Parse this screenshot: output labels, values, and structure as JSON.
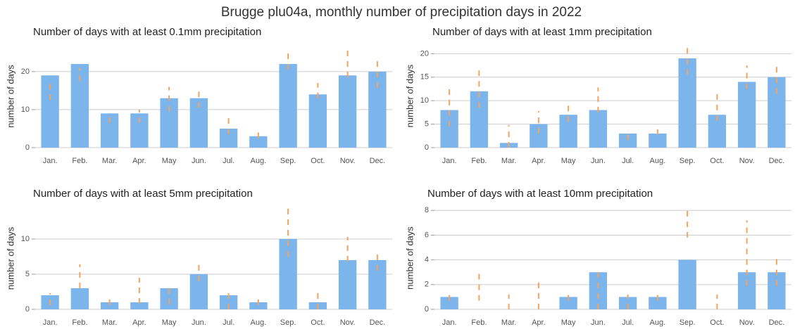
{
  "title": "Brugge plu04a, monthly number of precipitation days in 2022",
  "chart_data": [
    {
      "type": "bar",
      "title": "Number of days with at least 0.1mm precipitation",
      "ylabel": "number of days",
      "color": "#7cb4ec",
      "range_color": "#f5a25d",
      "grid": true,
      "categories": [
        "Jan.",
        "Feb.",
        "Mar.",
        "Apr.",
        "May",
        "Jun.",
        "Jul.",
        "Aug.",
        "Sep.",
        "Oct.",
        "Nov.",
        "Dec."
      ],
      "values": [
        19,
        22,
        9,
        9,
        13,
        13,
        5,
        3,
        22,
        14,
        19,
        20
      ],
      "low": [
        12.5,
        17.5,
        6.5,
        6.5,
        9.5,
        10.5,
        3.5,
        2.5,
        20.5,
        13,
        18.5,
        15.7
      ],
      "high": [
        18,
        21,
        9,
        10,
        16,
        15,
        7.8,
        4.3,
        26,
        17,
        26.7,
        22.8
      ],
      "ylim": [
        0,
        27
      ],
      "yticks": [
        0,
        10,
        20
      ]
    },
    {
      "type": "bar",
      "title": "Number of days with at least 1mm precipitation",
      "ylabel": "number of days",
      "color": "#7cb4ec",
      "range_color": "#f5a25d",
      "grid": true,
      "categories": [
        "Jan.",
        "Feb.",
        "Mar.",
        "Apr.",
        "May",
        "Jun.",
        "Jul.",
        "Aug.",
        "Sep.",
        "Oct.",
        "Nov.",
        "Dec."
      ],
      "values": [
        8,
        12,
        1,
        5,
        7,
        8,
        3,
        3,
        19,
        7,
        14,
        15
      ],
      "low": [
        4.5,
        8.5,
        0,
        3,
        5.5,
        7.5,
        1.6,
        2.7,
        15.5,
        5.7,
        12.5,
        11.5
      ],
      "high": [
        12.7,
        16.7,
        4.8,
        7.8,
        9.9,
        12.8,
        3.9,
        3.9,
        21.5,
        11.8,
        17.5,
        17.5
      ],
      "ylim": [
        0,
        22
      ],
      "yticks": [
        0,
        5,
        10,
        15,
        20
      ]
    },
    {
      "type": "bar",
      "title": "Number of days with at least 5mm precipitation",
      "ylabel": "number of days",
      "color": "#7cb4ec",
      "range_color": "#f5a25d",
      "grid": true,
      "categories": [
        "Jan.",
        "Feb.",
        "Mar.",
        "Apr.",
        "May",
        "Jun.",
        "Jul.",
        "Aug.",
        "Sep.",
        "Oct.",
        "Nov.",
        "Dec."
      ],
      "values": [
        2,
        3,
        1,
        1,
        3,
        5,
        2,
        1,
        10,
        1,
        7,
        7
      ],
      "low": [
        0.6,
        3,
        0.6,
        0.8,
        0.7,
        4,
        0,
        0.6,
        7.5,
        0,
        6.8,
        5.5
      ],
      "high": [
        2.3,
        6.4,
        1.4,
        4.5,
        3.5,
        6.3,
        2.3,
        1.4,
        14.4,
        2.4,
        10.3,
        8.5
      ],
      "ylim": [
        0,
        14.5
      ],
      "yticks": [
        0,
        5,
        10
      ]
    },
    {
      "type": "bar",
      "title": "Number of days with at least 10mm precipitation",
      "ylabel": "number of days",
      "color": "#7cb4ec",
      "range_color": "#f5a25d",
      "grid": true,
      "categories": [
        "Jan.",
        "Feb.",
        "Mar.",
        "Apr.",
        "May",
        "Jun.",
        "Jul.",
        "Aug.",
        "Sep.",
        "Oct.",
        "Nov.",
        "Dec."
      ],
      "values": [
        1,
        0,
        0,
        0,
        1,
        3,
        1,
        1,
        4,
        0,
        3,
        3
      ],
      "low": [
        0.7,
        0.7,
        0,
        0,
        0.7,
        0,
        0,
        0.7,
        5.8,
        0,
        1.9,
        1.9
      ],
      "high": [
        1.2,
        3.2,
        1.2,
        2.2,
        1.2,
        3.1,
        1.2,
        1.2,
        8.2,
        1.2,
        7.2,
        4.1
      ],
      "ylim": [
        0,
        8.3
      ],
      "yticks": [
        0,
        2,
        4,
        6,
        8
      ]
    }
  ]
}
